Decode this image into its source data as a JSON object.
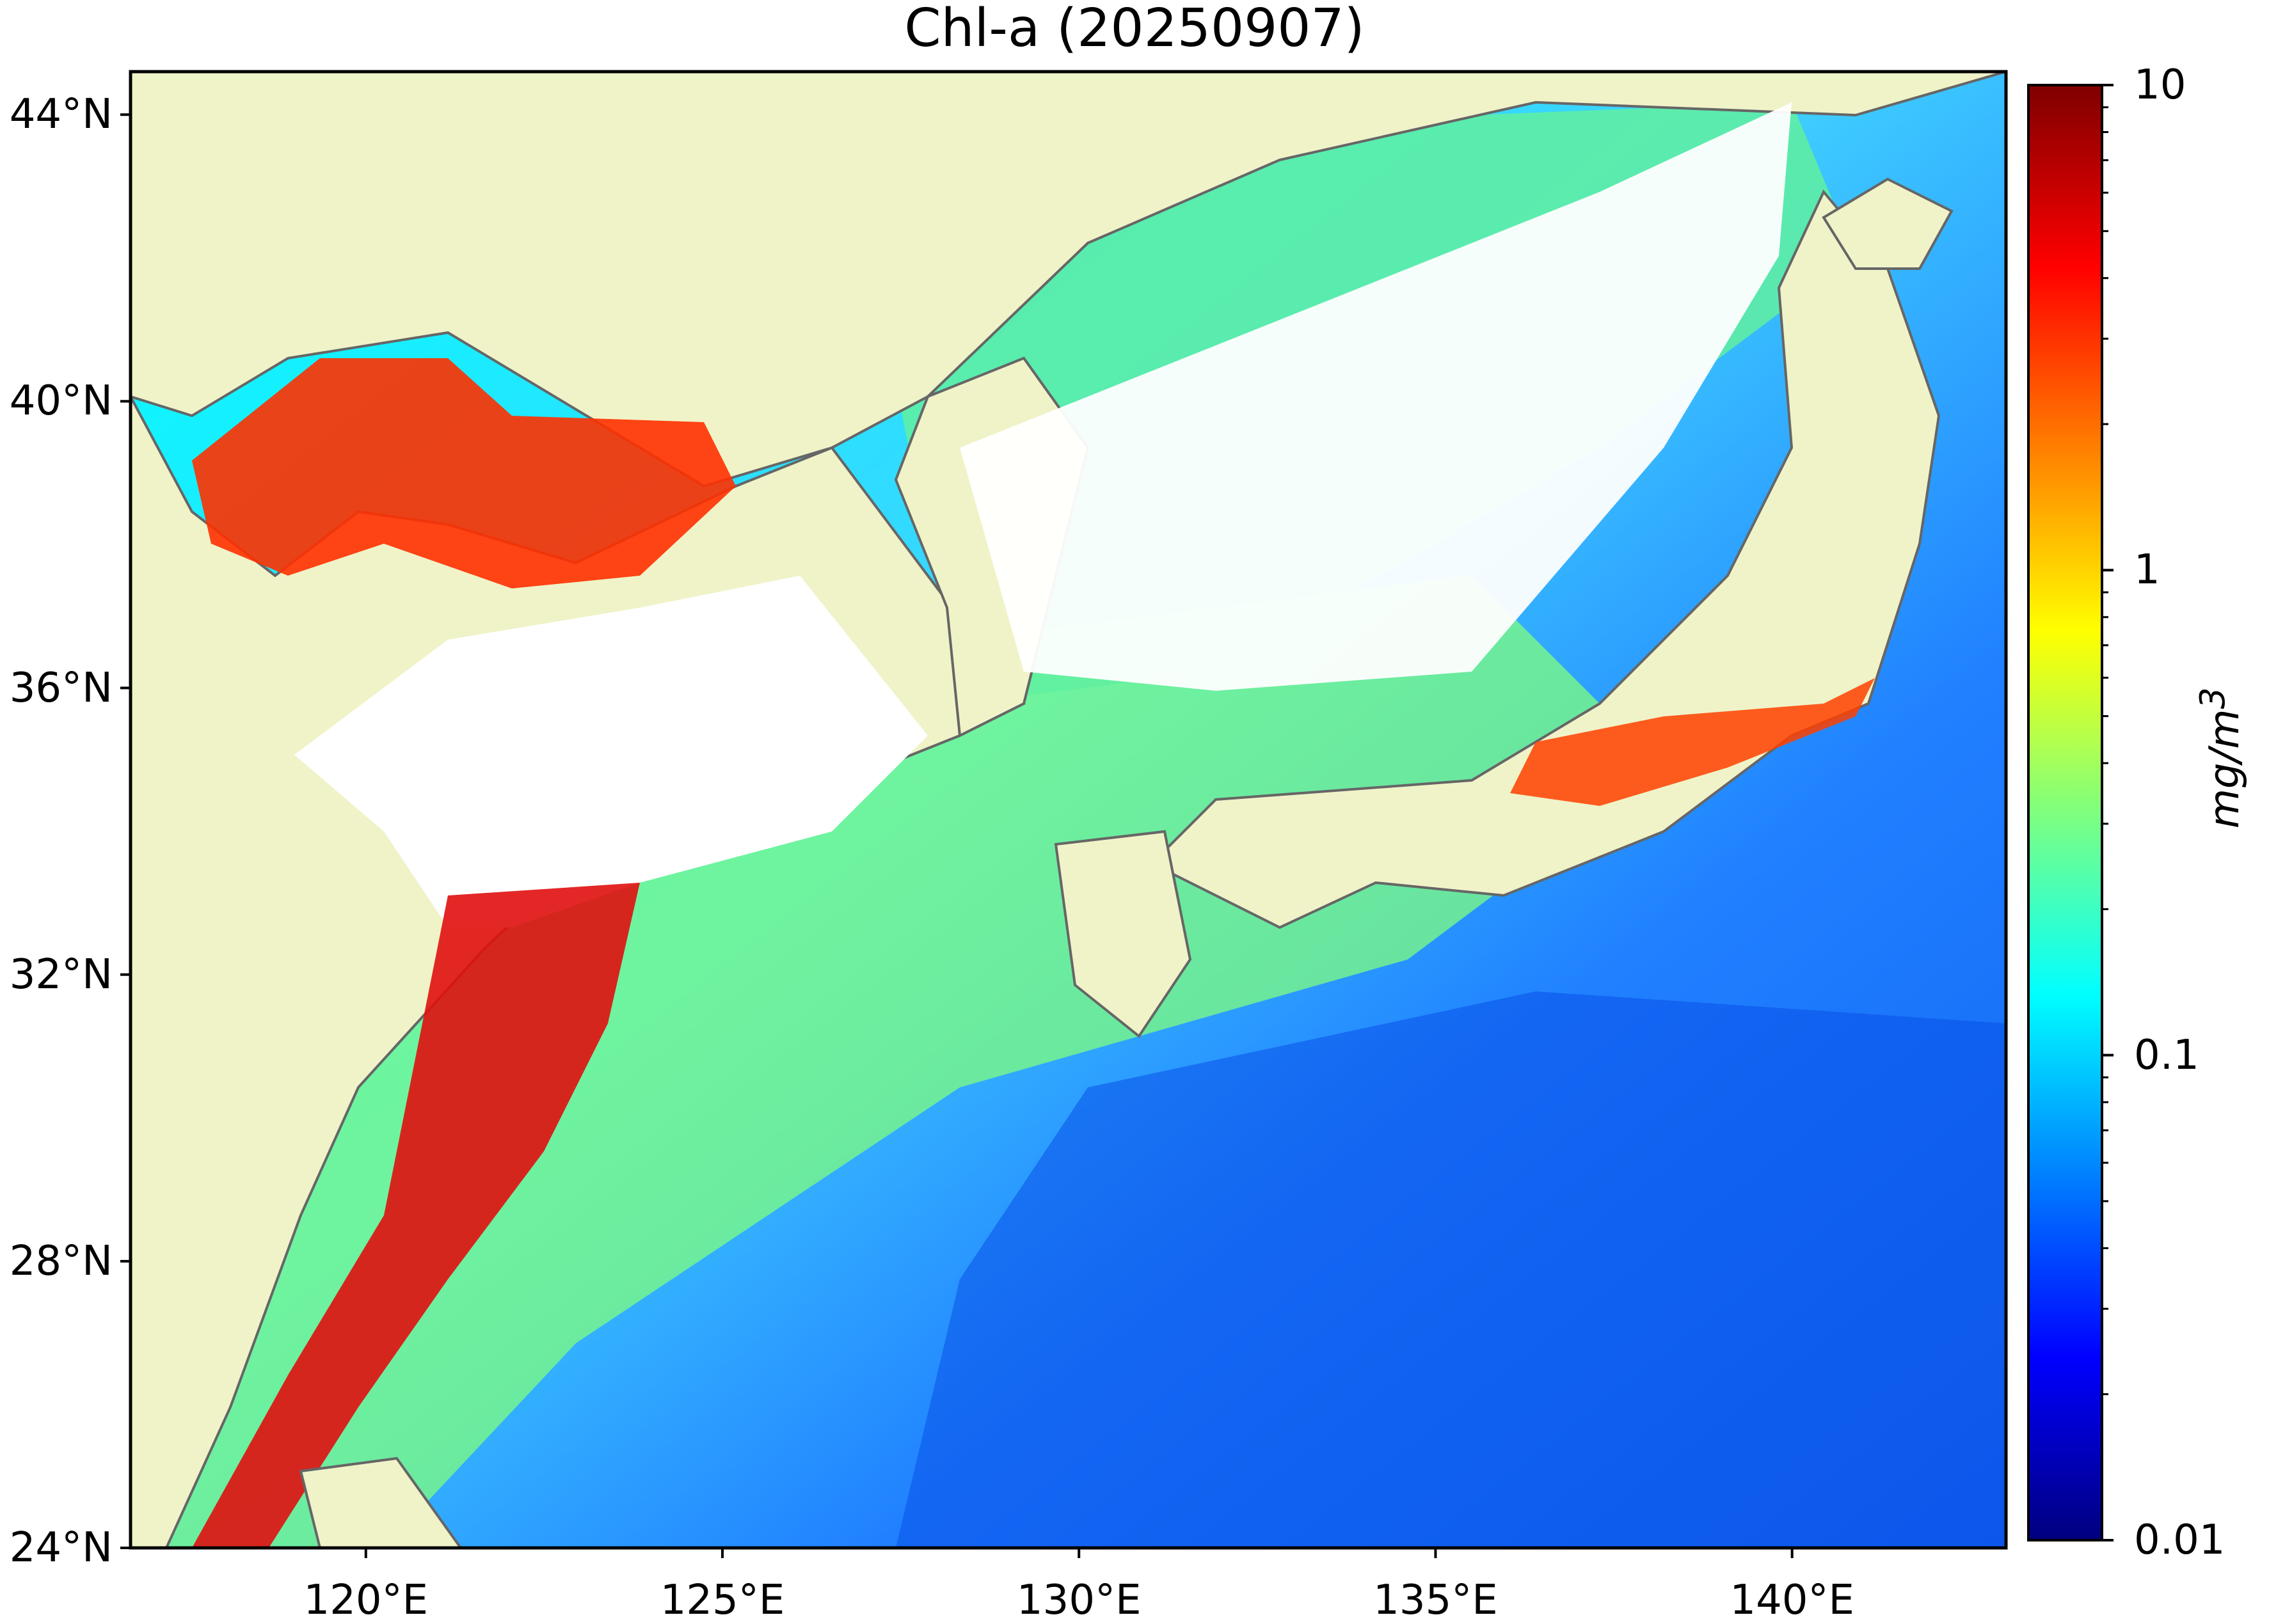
{
  "title": "Chl-a (20250907)",
  "map": {
    "lon_range": [
      116.7,
      143.0
    ],
    "lat_range": [
      24.0,
      44.6
    ],
    "land_color": "#f0f3c8",
    "no_data_color": "#ffffff",
    "coast_color": "#666666",
    "lat_ticks": [
      {
        "value": 44,
        "label": "44°N"
      },
      {
        "value": 40,
        "label": "40°N"
      },
      {
        "value": 36,
        "label": "36°N"
      },
      {
        "value": 32,
        "label": "32°N"
      },
      {
        "value": 28,
        "label": "28°N"
      },
      {
        "value": 24,
        "label": "24°N"
      }
    ],
    "lon_ticks": [
      {
        "value": 120,
        "label": "120°E"
      },
      {
        "value": 125,
        "label": "125°E"
      },
      {
        "value": 130,
        "label": "130°E"
      },
      {
        "value": 135,
        "label": "135°E"
      },
      {
        "value": 140,
        "label": "140°E"
      }
    ]
  },
  "colorbar": {
    "scale": "log",
    "min": 0.01,
    "max": 10,
    "unit": "mg/m3",
    "ticks": [
      {
        "value": 10,
        "label": "10"
      },
      {
        "value": 1,
        "label": "1"
      },
      {
        "value": 0.1,
        "label": "0.1"
      },
      {
        "value": 0.01,
        "label": "0.01"
      }
    ],
    "colors": [
      "#00007f",
      "#0000ff",
      "#007fff",
      "#00ffff",
      "#7fff7f",
      "#ffff00",
      "#ff7f00",
      "#ff0000",
      "#7f0000"
    ]
  }
}
